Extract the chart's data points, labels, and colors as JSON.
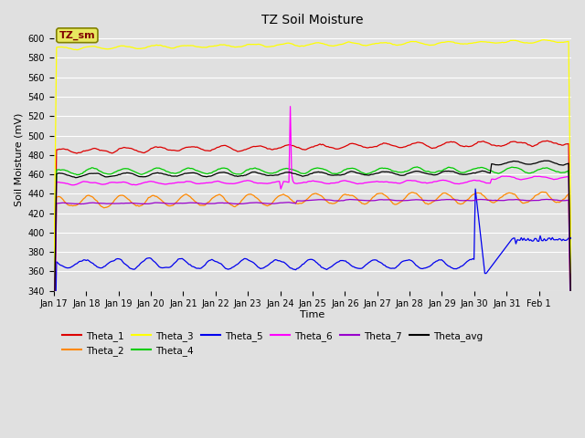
{
  "title": "TZ Soil Moisture",
  "xlabel": "Time",
  "ylabel": "Soil Moisture (mV)",
  "ylim": [
    340,
    610
  ],
  "yticks": [
    340,
    360,
    380,
    400,
    420,
    440,
    460,
    480,
    500,
    520,
    540,
    560,
    580,
    600
  ],
  "bg_color": "#e0e0e0",
  "grid_color": "#ffffff",
  "xtick_labels": [
    "Jan 17",
    "Jan 18",
    "Jan 19",
    "Jan 20",
    "Jan 21",
    "Jan 22",
    "Jan 23",
    "Jan 24",
    "Jan 25",
    "Jan 26",
    "Jan 27",
    "Jan 28",
    "Jan 29",
    "Jan 30",
    "Jan 31",
    "Feb 1"
  ],
  "xtick_positions": [
    0,
    1,
    2,
    3,
    4,
    5,
    6,
    7,
    8,
    9,
    10,
    11,
    12,
    13,
    14,
    15
  ],
  "colors": {
    "Theta_1": "#dd0000",
    "Theta_2": "#ff8800",
    "Theta_3": "#ffff00",
    "Theta_4": "#00cc00",
    "Theta_5": "#0000ee",
    "Theta_6": "#ff00ff",
    "Theta_7": "#9900cc",
    "Theta_avg": "#000000"
  },
  "legend_order": [
    "Theta_1",
    "Theta_2",
    "Theta_3",
    "Theta_4",
    "Theta_5",
    "Theta_6",
    "Theta_7",
    "Theta_avg"
  ]
}
